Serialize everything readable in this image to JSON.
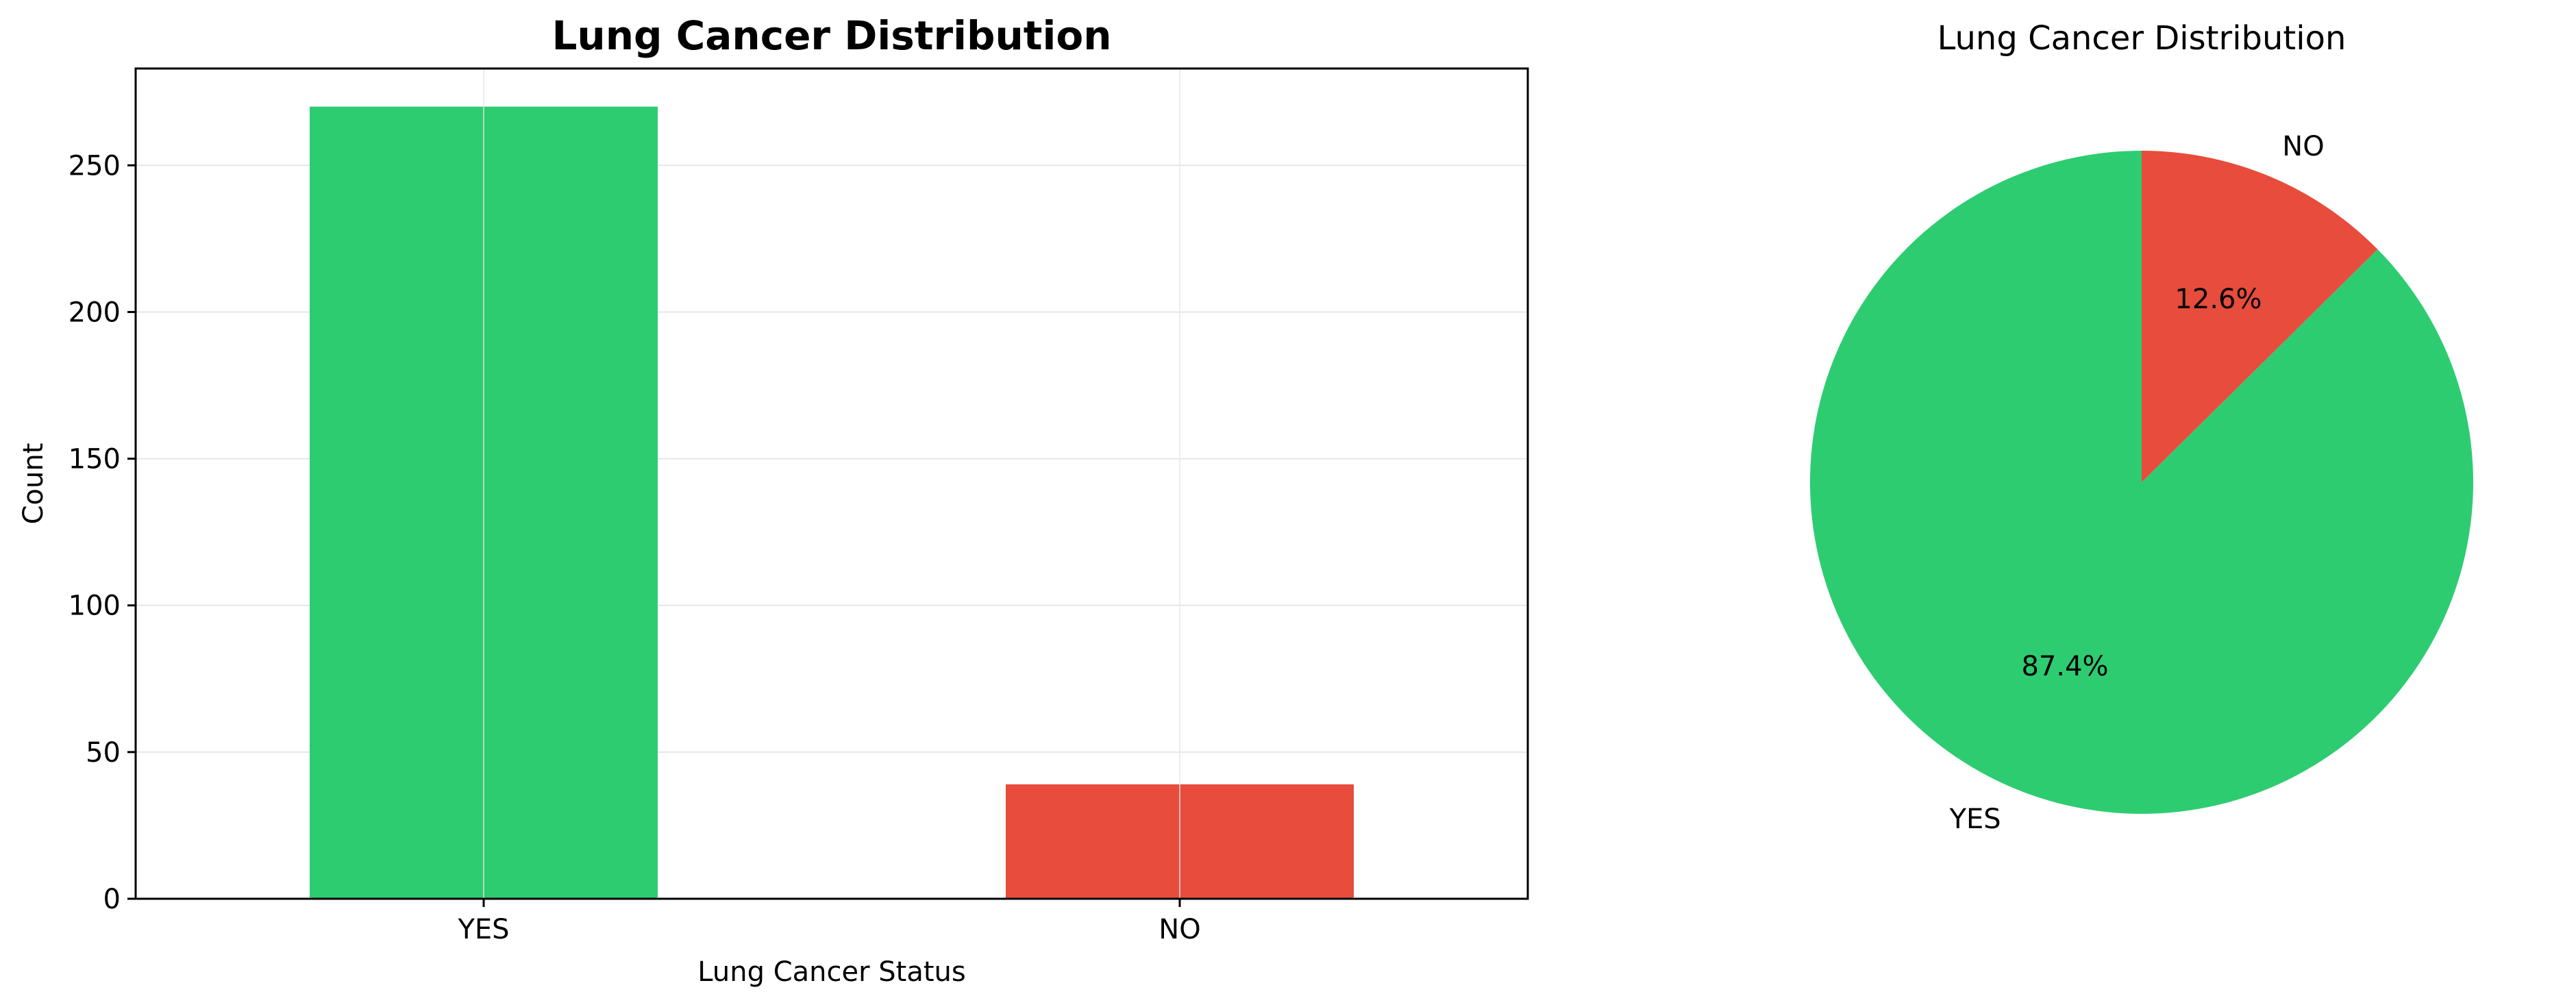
{
  "chart_data": [
    {
      "type": "bar",
      "title": "Lung Cancer Distribution",
      "xlabel": "Lung Cancer Status",
      "ylabel": "Count",
      "categories": [
        "YES",
        "NO"
      ],
      "values": [
        270,
        39
      ],
      "colors": [
        "#2ecc71",
        "#e74c3c"
      ],
      "ylim": [
        0,
        283
      ],
      "yticks": [
        0,
        50,
        100,
        150,
        200,
        250
      ],
      "grid": true
    },
    {
      "type": "pie",
      "title": "Lung Cancer Distribution",
      "labels": [
        "YES",
        "NO"
      ],
      "values": [
        87.4,
        12.6
      ],
      "pct_labels": [
        "87.4%",
        "12.6%"
      ],
      "colors": [
        "#2ecc71",
        "#e74c3c"
      ]
    }
  ]
}
